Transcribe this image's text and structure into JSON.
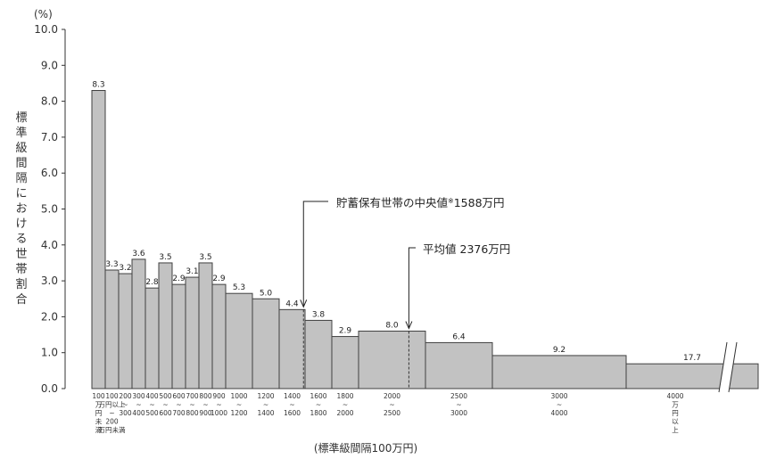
{
  "chart_data": {
    "type": "bar",
    "title": "",
    "y_unit": "(%)",
    "ylabel": "標準級間隔における世帯割合",
    "xlabel": "(標準級間隔100万円)",
    "ylim": [
      0,
      10
    ],
    "yticks": [
      "0.0",
      "1.0",
      "2.0",
      "3.0",
      "4.0",
      "5.0",
      "6.0",
      "7.0",
      "8.0",
      "9.0",
      "10.0"
    ],
    "grid": false,
    "bars": [
      {
        "from": 0,
        "to": 100,
        "value": 8.3,
        "label": "8.3",
        "category": [
          "100",
          "万",
          "円",
          "未",
          "満"
        ]
      },
      {
        "from": 100,
        "to": 200,
        "value": 3.3,
        "label": "3.3",
        "category": [
          "100",
          "万円以上",
          "~",
          "200",
          "万円未満"
        ]
      },
      {
        "from": 200,
        "to": 300,
        "value": 3.2,
        "label": "3.2",
        "category": [
          "200",
          "~",
          "300"
        ]
      },
      {
        "from": 300,
        "to": 400,
        "value": 3.6,
        "label": "3.6",
        "category": [
          "300",
          "~",
          "400"
        ]
      },
      {
        "from": 400,
        "to": 500,
        "value": 2.8,
        "label": "2.8",
        "category": [
          "400",
          "~",
          "500"
        ]
      },
      {
        "from": 500,
        "to": 600,
        "value": 3.5,
        "label": "3.5",
        "category": [
          "500",
          "~",
          "600"
        ]
      },
      {
        "from": 600,
        "to": 700,
        "value": 2.9,
        "label": "2.9",
        "category": [
          "600",
          "~",
          "700"
        ]
      },
      {
        "from": 700,
        "to": 800,
        "value": 3.1,
        "label": "3.1",
        "category": [
          "700",
          "~",
          "800"
        ]
      },
      {
        "from": 800,
        "to": 900,
        "value": 3.5,
        "label": "3.5",
        "category": [
          "800",
          "~",
          "900"
        ]
      },
      {
        "from": 900,
        "to": 1000,
        "value": 2.9,
        "label": "2.9",
        "category": [
          "900",
          "~",
          "1000"
        ]
      },
      {
        "from": 1000,
        "to": 1200,
        "value": 2.65,
        "label": "5.3",
        "category": [
          "1000",
          "~",
          "1200"
        ]
      },
      {
        "from": 1200,
        "to": 1400,
        "value": 2.5,
        "label": "5.0",
        "category": [
          "1200",
          "~",
          "1400"
        ]
      },
      {
        "from": 1400,
        "to": 1600,
        "value": 2.2,
        "label": "4.4",
        "category": [
          "1400",
          "~",
          "1600"
        ]
      },
      {
        "from": 1600,
        "to": 1800,
        "value": 1.9,
        "label": "3.8",
        "category": [
          "1600",
          "~",
          "1800"
        ]
      },
      {
        "from": 1800,
        "to": 2000,
        "value": 1.45,
        "label": "2.9",
        "category": [
          "1800",
          "~",
          "2000"
        ]
      },
      {
        "from": 2000,
        "to": 2500,
        "value": 1.6,
        "label": "8.0",
        "category": [
          "2000",
          "~",
          "2500"
        ]
      },
      {
        "from": 2500,
        "to": 3000,
        "value": 1.28,
        "label": "6.4",
        "category": [
          "2500",
          "~",
          "3000"
        ]
      },
      {
        "from": 3000,
        "to": 4000,
        "value": 0.92,
        "label": "9.2",
        "category": [
          "3000",
          "~",
          "4000"
        ]
      },
      {
        "from": 4000,
        "to": null,
        "value": 0.69,
        "label": "17.7",
        "category": [
          "4000",
          "万",
          "円",
          "以",
          "上"
        ]
      }
    ],
    "annotations": [
      {
        "label": "貯蓄保有世帯の中央値",
        "note_mark": "※",
        "value_text": "1588万円",
        "x": 1588
      },
      {
        "label": "平均値",
        "value_text": "2376万円",
        "x": 2376
      }
    ],
    "colors": {
      "bar_fill": "#c2c2c2",
      "bar_stroke": "#404040",
      "axis": "#333333"
    }
  }
}
